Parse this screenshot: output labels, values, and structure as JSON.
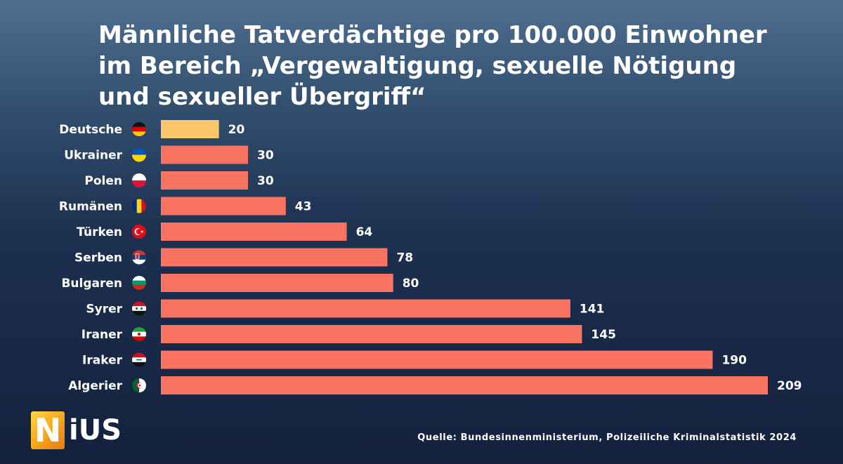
{
  "title_lines": [
    "Männliche Tatverdächtige pro 100.000 Einwohner",
    "im Bereich „Vergewaltigung, sexuelle Nötigung",
    "und sexueller Übergriff“"
  ],
  "source": "Quelle: Bundesinnenministerium, Polizeiliche Kriminalstatistik 2024",
  "logo": {
    "first_letter": "N",
    "rest": "iUS"
  },
  "colors": {
    "highlight_bar": "#fcc76a",
    "bar": "#fb7462",
    "text": "#ffffff"
  },
  "chart_data": {
    "type": "bar",
    "orientation": "horizontal",
    "title": "Männliche Tatverdächtige pro 100.000 Einwohner im Bereich „Vergewaltigung, sexuelle Nötigung und sexueller Übergriff“",
    "categories": [
      "Deutsche",
      "Ukrainer",
      "Polen",
      "Rumänen",
      "Türken",
      "Serben",
      "Bulgaren",
      "Syrer",
      "Iraner",
      "Iraker",
      "Algerier"
    ],
    "flags": [
      "germany",
      "ukraine",
      "poland",
      "romania",
      "turkey",
      "serbia",
      "bulgaria",
      "syria",
      "iran",
      "iraq",
      "algeria"
    ],
    "values": [
      20,
      30,
      30,
      43,
      64,
      78,
      80,
      141,
      145,
      190,
      209
    ],
    "highlight_category": "Deutsche",
    "xlim": [
      0,
      209
    ],
    "grid": false,
    "legend": "none",
    "data_labels": true
  }
}
